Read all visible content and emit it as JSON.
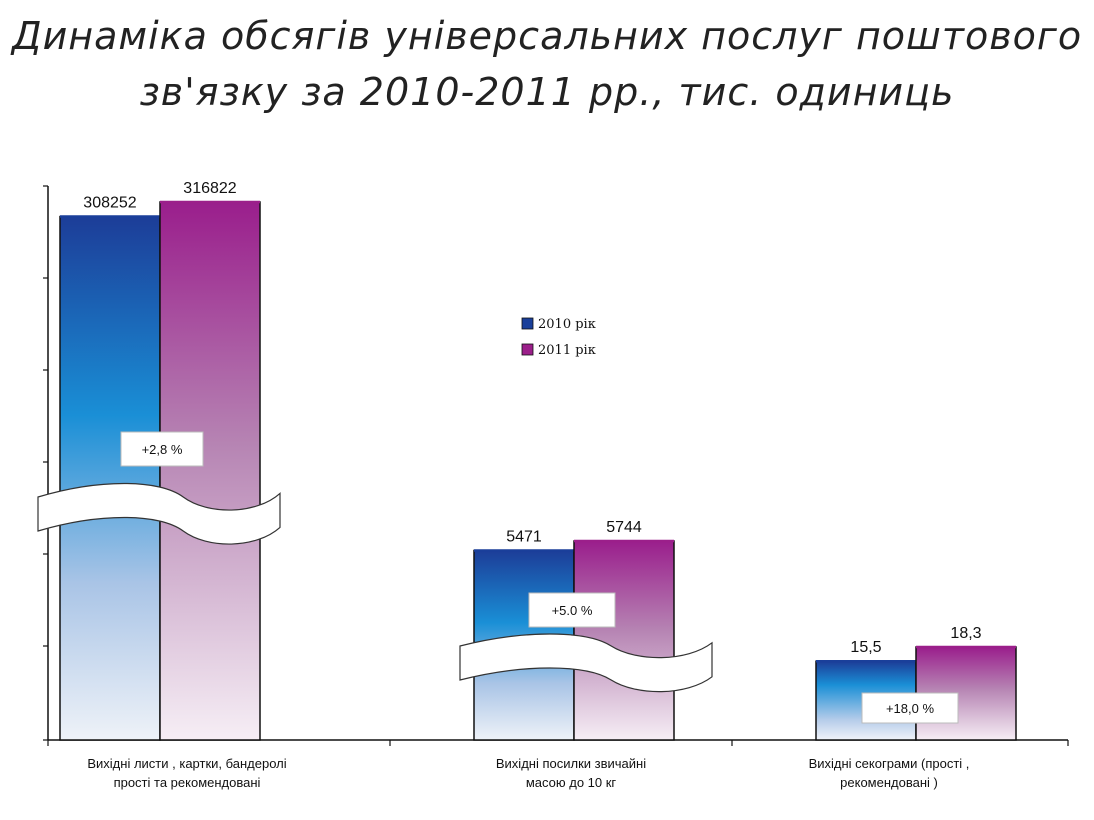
{
  "chart_data": {
    "type": "bar",
    "title_lines": [
      "Динаміка обсягів універсальних послуг поштового",
      "зв'язку за 2010-2011 рр., тис. одиниць"
    ],
    "categories": [
      [
        "Вихідні листи , картки, бандеролі",
        "прості та рекомендовані"
      ],
      [
        "Вихідні посилки звичайні",
        "масою до 10 кг"
      ],
      [
        "Вихідні секограми (прості ,",
        "рекомендовані )"
      ]
    ],
    "series": [
      {
        "name": "2010 рік",
        "values": [
          308252,
          5471,
          15.5
        ],
        "labels": [
          "308252",
          "5471",
          "15,5"
        ],
        "color": "#1a3f9a"
      },
      {
        "name": "2011 рік",
        "values": [
          316822,
          5744,
          18.3
        ],
        "labels": [
          "316822",
          "5744",
          "18,3"
        ],
        "color": "#9b1f8a"
      }
    ],
    "growth_labels": [
      "+2,8 %",
      "+5.0 %",
      "+18,0 %"
    ],
    "axis_break": true,
    "grid": false,
    "legend_position": "center"
  }
}
